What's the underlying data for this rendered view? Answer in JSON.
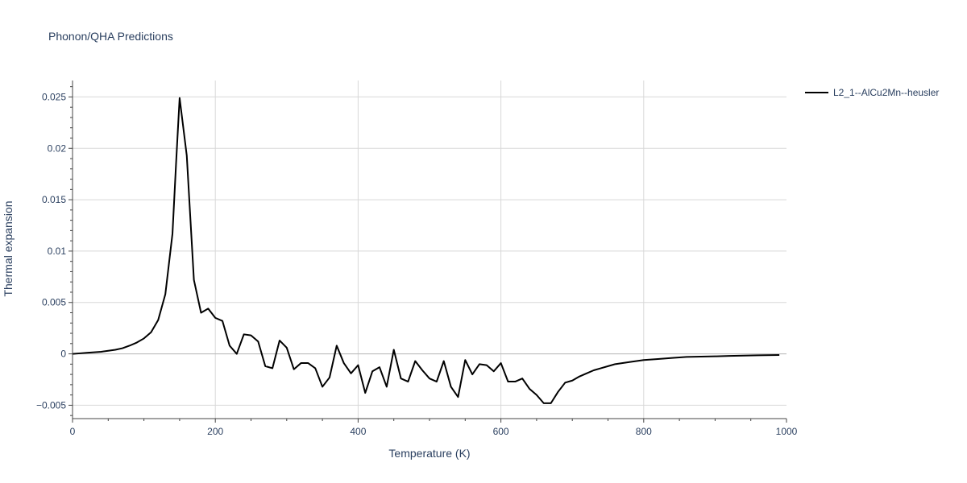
{
  "chart_data": {
    "type": "line",
    "title": "Phonon/QHA Predictions",
    "xlabel": "Temperature (K)",
    "ylabel": "Thermal expansion",
    "xlim": [
      0,
      1000
    ],
    "ylim": [
      -0.0063,
      0.0266
    ],
    "x_ticks": [
      0,
      200,
      400,
      600,
      800,
      1000
    ],
    "x_tick_labels": [
      "0",
      "200",
      "400",
      "600",
      "800",
      "1000"
    ],
    "y_ticks": [
      -0.005,
      0,
      0.005,
      0.01,
      0.015,
      0.02,
      0.025
    ],
    "y_tick_labels": [
      "−0.005",
      "0",
      "0.005",
      "0.01",
      "0.015",
      "0.02",
      "0.025"
    ],
    "grid": true,
    "legend_position": "top-right",
    "series": [
      {
        "name": "L2_1--AlCu2Mn--heusler",
        "color": "#000000",
        "x": [
          0,
          10,
          20,
          30,
          40,
          50,
          60,
          70,
          80,
          90,
          100,
          110,
          120,
          130,
          140,
          145,
          150,
          160,
          170,
          180,
          190,
          200,
          210,
          220,
          230,
          240,
          250,
          260,
          270,
          280,
          290,
          300,
          310,
          320,
          330,
          340,
          350,
          360,
          370,
          380,
          390,
          400,
          410,
          420,
          430,
          440,
          450,
          460,
          470,
          480,
          490,
          500,
          510,
          520,
          530,
          540,
          550,
          560,
          570,
          580,
          590,
          600,
          610,
          620,
          630,
          640,
          650,
          660,
          670,
          680,
          690,
          700,
          710,
          720,
          730,
          740,
          750,
          760,
          780,
          800,
          820,
          840,
          860,
          880,
          900,
          920,
          940,
          960,
          980,
          990
        ],
        "y": [
          0,
          5e-05,
          0.0001,
          0.00015,
          0.0002,
          0.0003,
          0.0004,
          0.00055,
          0.0008,
          0.0011,
          0.0015,
          0.0021,
          0.0033,
          0.0058,
          0.0117,
          0.0185,
          0.0249,
          0.0193,
          0.0072,
          0.004,
          0.0044,
          0.0035,
          0.0032,
          0.0008,
          0.0,
          0.0019,
          0.0018,
          0.0012,
          -0.0012,
          -0.0014,
          0.0013,
          0.0006,
          -0.0015,
          -0.0009,
          -0.0009,
          -0.0014,
          -0.0032,
          -0.0023,
          0.0008,
          -0.0009,
          -0.0019,
          -0.0011,
          -0.0038,
          -0.0017,
          -0.0013,
          -0.0032,
          0.0004,
          -0.0024,
          -0.0027,
          -0.0007,
          -0.0016,
          -0.0024,
          -0.0027,
          -0.0007,
          -0.0032,
          -0.0042,
          -0.0006,
          -0.002,
          -0.001,
          -0.0011,
          -0.0017,
          -0.0009,
          -0.0027,
          -0.0027,
          -0.0024,
          -0.0034,
          -0.004,
          -0.0048,
          -0.0048,
          -0.0037,
          -0.0028,
          -0.0026,
          -0.0022,
          -0.0019,
          -0.0016,
          -0.0014,
          -0.0012,
          -0.001,
          -0.0008,
          -0.0006,
          -0.0005,
          -0.0004,
          -0.0003,
          -0.00027,
          -0.00024,
          -0.0002,
          -0.00017,
          -0.00014,
          -0.00012,
          -0.00011
        ]
      }
    ]
  }
}
